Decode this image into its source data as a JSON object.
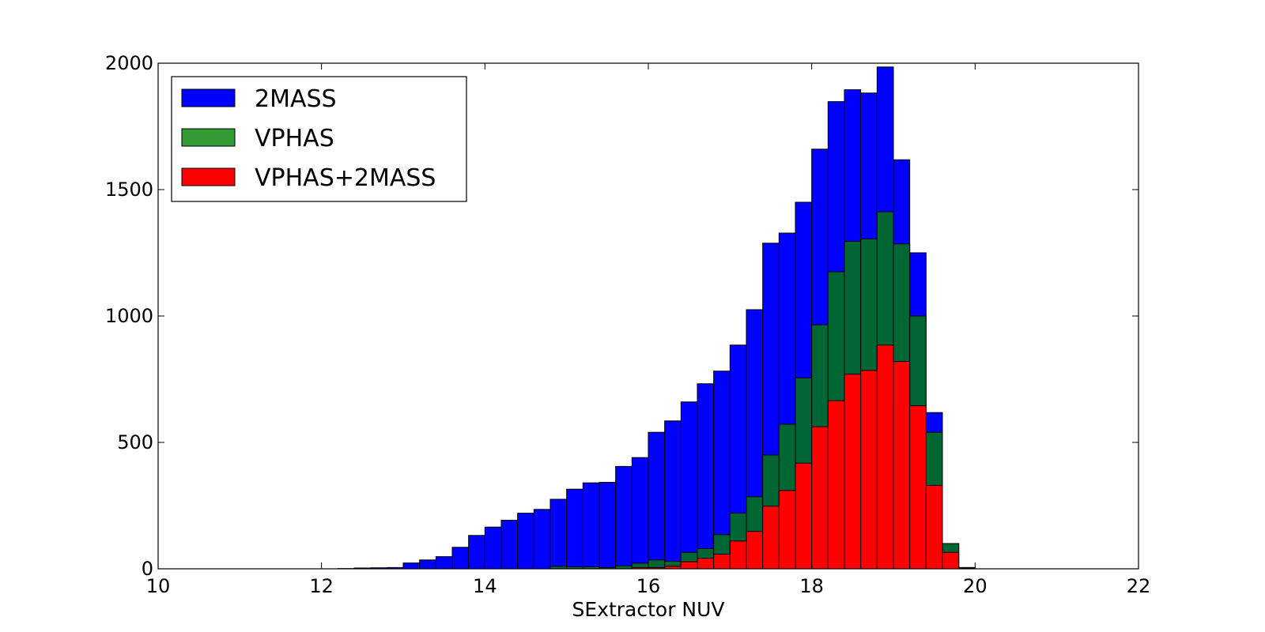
{
  "chart_data": {
    "type": "bar",
    "stacked": false,
    "overlaid": true,
    "title": "",
    "xlabel": "SExtractor NUV",
    "ylabel": "",
    "xlim": [
      10,
      22
    ],
    "ylim": [
      0,
      2000
    ],
    "xticks": [
      "10",
      "12",
      "14",
      "16",
      "18",
      "20",
      "22"
    ],
    "yticks": [
      "0",
      "500",
      "1000",
      "1500",
      "2000"
    ],
    "grid": false,
    "legend_position": "top-left",
    "bin_start": 10.0,
    "bin_width": 0.2,
    "series": [
      {
        "name": "2MASS",
        "color": "#0000ff",
        "values": [
          0,
          0,
          0,
          0,
          0,
          0,
          0,
          0,
          0,
          0,
          0,
          1,
          3,
          4,
          5,
          23,
          35,
          48,
          85,
          132,
          165,
          192,
          220,
          235,
          275,
          315,
          340,
          342,
          405,
          440,
          540,
          585,
          660,
          732,
          782,
          885,
          1025,
          1288,
          1328,
          1450,
          1660,
          1848,
          1895,
          1882,
          1985,
          1618,
          1250,
          618,
          100,
          5,
          0,
          0,
          0,
          0,
          0,
          0,
          0,
          0,
          0,
          0
        ]
      },
      {
        "name": "VPHAS",
        "color": "#006633",
        "values": [
          0,
          0,
          0,
          0,
          0,
          0,
          0,
          0,
          0,
          0,
          0,
          0,
          0,
          0,
          0,
          0,
          0,
          0,
          0,
          0,
          0,
          0,
          0,
          0,
          10,
          8,
          8,
          5,
          12,
          22,
          35,
          30,
          65,
          80,
          135,
          220,
          285,
          450,
          572,
          755,
          965,
          1175,
          1295,
          1305,
          1412,
          1285,
          1000,
          540,
          100,
          5,
          0,
          0,
          0,
          0,
          0,
          0,
          0,
          0,
          0,
          0
        ]
      },
      {
        "name": "VPHAS+2MASS",
        "color": "#ff0000",
        "values": [
          0,
          0,
          0,
          0,
          0,
          0,
          0,
          0,
          0,
          0,
          0,
          0,
          0,
          0,
          0,
          0,
          0,
          0,
          0,
          0,
          0,
          0,
          0,
          0,
          0,
          0,
          0,
          0,
          0,
          5,
          5,
          10,
          28,
          42,
          58,
          110,
          148,
          248,
          310,
          418,
          562,
          665,
          770,
          785,
          885,
          820,
          645,
          330,
          65,
          2,
          0,
          0,
          0,
          0,
          0,
          0,
          0,
          0,
          0,
          0
        ]
      }
    ]
  }
}
